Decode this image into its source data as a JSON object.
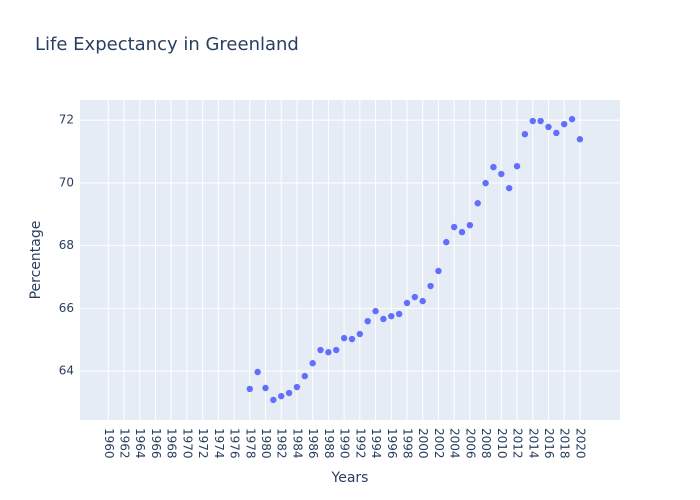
{
  "chart_data": {
    "type": "scatter",
    "title": "Life Expectancy in Greenland",
    "x_label": "Years",
    "y_label": "Percentage",
    "x": [
      1978,
      1979,
      1980,
      1981,
      1982,
      1983,
      1984,
      1985,
      1986,
      1987,
      1988,
      1989,
      1990,
      1991,
      1992,
      1993,
      1994,
      1995,
      1996,
      1997,
      1998,
      1999,
      2000,
      2001,
      2002,
      2003,
      2004,
      2005,
      2006,
      2007,
      2008,
      2009,
      2010,
      2011,
      2012,
      2013,
      2014,
      2015,
      2016,
      2017,
      2018,
      2019,
      2020
    ],
    "values": [
      63.43,
      63.97,
      63.46,
      63.08,
      63.2,
      63.3,
      63.49,
      63.84,
      64.25,
      64.67,
      64.6,
      64.67,
      65.05,
      65.02,
      65.18,
      65.59,
      65.91,
      65.66,
      65.75,
      65.82,
      66.17,
      66.36,
      66.23,
      66.71,
      67.19,
      68.11,
      68.59,
      68.43,
      68.65,
      69.35,
      69.99,
      70.5,
      70.28,
      69.83,
      70.53,
      71.55,
      71.97,
      71.97,
      71.78,
      71.59,
      71.87,
      72.03,
      71.39
    ],
    "color": "#636efa",
    "xlim": [
      1956.4,
      2025.1
    ],
    "xticks": [
      1960,
      1962,
      1964,
      1966,
      1968,
      1970,
      1972,
      1974,
      1976,
      1978,
      1980,
      1982,
      1984,
      1986,
      1988,
      1990,
      1992,
      1994,
      1996,
      1998,
      2000,
      2002,
      2004,
      2006,
      2008,
      2010,
      2012,
      2014,
      2016,
      2018,
      2020
    ],
    "ylim": [
      62.44,
      72.64
    ],
    "yticks": [
      64,
      66,
      68,
      70,
      72
    ],
    "grid": true
  }
}
